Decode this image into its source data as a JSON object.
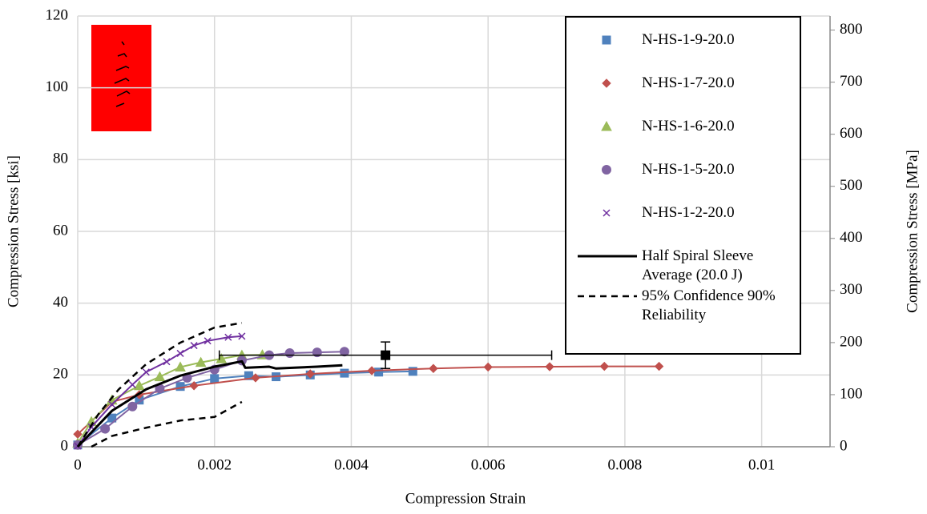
{
  "chart_data": {
    "type": "line",
    "x_label": "Compression Strain",
    "y_label": "Compression Stress [ksi]",
    "y2_label": "Compression Stress [MPa]",
    "xlim": [
      0,
      0.011
    ],
    "xticks": [
      0,
      0.002,
      0.004,
      0.006,
      0.008,
      0.01
    ],
    "ylim": [
      0,
      120
    ],
    "yticks": [
      0,
      20,
      40,
      60,
      80,
      100,
      120
    ],
    "y2lim": [
      0,
      827
    ],
    "y2ticks": [
      0,
      100,
      200,
      300,
      400,
      500,
      600,
      700,
      800
    ],
    "grid": true,
    "legend": "upper right",
    "series": [
      {
        "name": "N-HS-1-9-20.0",
        "color": "#4f81bd",
        "marker": "square",
        "style": "solid",
        "x": [
          0,
          0.0005,
          0.0009,
          0.0015,
          0.002,
          0.0025,
          0.0029,
          0.0034,
          0.0039,
          0.0044,
          0.0049
        ],
        "values": [
          0.5,
          8,
          13,
          16.8,
          19,
          19.8,
          19.5,
          20,
          20.5,
          20.8,
          21
        ]
      },
      {
        "name": "N-HS-1-7-20.0",
        "color": "#c0504d",
        "marker": "diamond",
        "style": "solid",
        "x": [
          0,
          0.0005,
          0.0009,
          0.0017,
          0.0026,
          0.0034,
          0.0043,
          0.0052,
          0.006,
          0.0069,
          0.0077,
          0.0085
        ],
        "values": [
          3.5,
          12.5,
          14.5,
          17,
          19.2,
          20.3,
          21.2,
          21.8,
          22.2,
          22.3,
          22.4,
          22.4
        ]
      },
      {
        "name": "N-HS-1-6-20.0",
        "color": "#9bbb59",
        "marker": "triangle",
        "style": "solid",
        "x": [
          0,
          0.0002,
          0.0005,
          0.0009,
          0.0012,
          0.0015,
          0.0018,
          0.0021,
          0.0024,
          0.0027
        ],
        "values": [
          1,
          7,
          13,
          17,
          19.5,
          22.2,
          23.5,
          24.5,
          25.5,
          25.6
        ]
      },
      {
        "name": "N-HS-1-5-20.0",
        "color": "#8064a2",
        "marker": "circle",
        "style": "solid",
        "x": [
          0,
          0.0004,
          0.0008,
          0.0012,
          0.0016,
          0.002,
          0.0024,
          0.0028,
          0.0031,
          0.0035,
          0.0039
        ],
        "values": [
          0.5,
          5,
          11.2,
          16.2,
          19.2,
          21.5,
          24,
          25.5,
          26.1,
          26.3,
          26.5
        ]
      },
      {
        "name": "N-HS-1-2-20.0",
        "color": "#7030a0",
        "marker": "x",
        "style": "solid",
        "x": [
          0,
          0.0002,
          0.0005,
          0.0008,
          0.001,
          0.0013,
          0.0015,
          0.0017,
          0.0019,
          0.0022,
          0.0024
        ],
        "values": [
          0.2,
          5.5,
          11.8,
          17.3,
          20.8,
          23.7,
          26,
          28.2,
          29.5,
          30.5,
          30.8
        ]
      },
      {
        "name": "Half Spiral Sleeve Average (20.0 J)",
        "color": "#000000",
        "marker": null,
        "style": "solid",
        "x": [
          0,
          0.0005,
          0.001,
          0.0015,
          0.002,
          0.0024,
          0.00245,
          0.0028,
          0.0029,
          0.0035,
          0.00387
        ],
        "values": [
          0,
          10,
          16,
          19.8,
          22.3,
          23.8,
          22,
          22.3,
          21.8,
          22.3,
          22.7
        ]
      },
      {
        "name": "95% Confidence 90% Reliability",
        "color": "#000000",
        "marker": null,
        "style": "dashed",
        "x": [
          0,
          0.0003,
          0.0006,
          0.001,
          0.0015,
          0.002,
          0.0024
        ],
        "values": [
          0,
          9,
          16,
          23,
          29,
          33.2,
          34.5
        ]
      },
      {
        "color": "#000000",
        "marker": null,
        "style": "dashed",
        "x": [
          0.0002,
          0.0005,
          0.001,
          0.0015,
          0.002,
          0.0024
        ],
        "values": [
          0,
          3,
          5.3,
          7.3,
          8.3,
          12.5
        ]
      }
    ],
    "errorbar": {
      "x": 0.0045,
      "y": 25.5,
      "xerr": 0.00243,
      "yerr": 3.7,
      "color": "#000000"
    }
  }
}
